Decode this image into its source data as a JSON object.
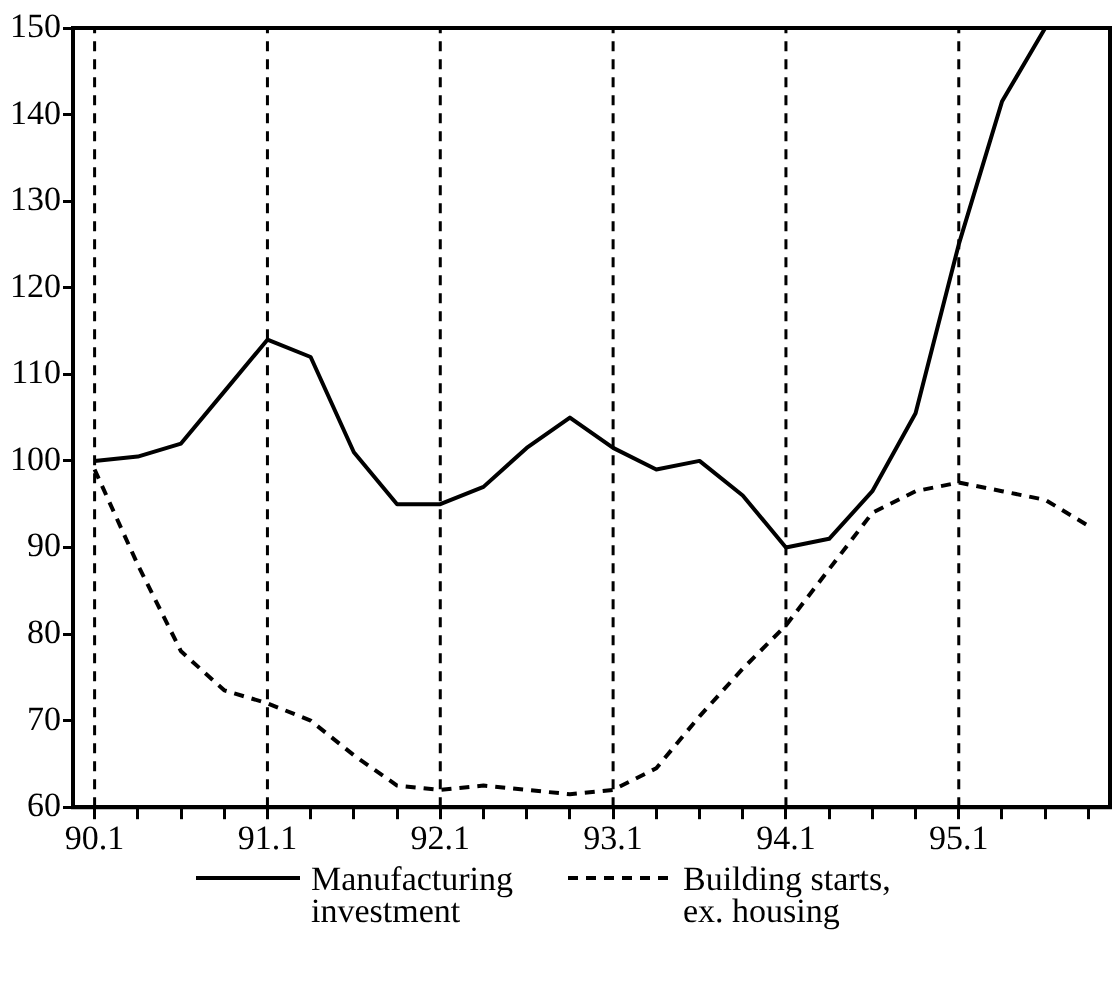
{
  "chart_data": {
    "type": "line",
    "categories": [
      "90.1",
      null,
      null,
      null,
      "91.1",
      null,
      null,
      null,
      "92.1",
      null,
      null,
      null,
      "93.1",
      null,
      null,
      null,
      "94.1",
      null,
      null,
      null,
      "95.1",
      null,
      null,
      null
    ],
    "series": [
      {
        "name": "Manufacturing investment",
        "color": "#000000",
        "line_style": "solid",
        "values": [
          100,
          100.5,
          102,
          108,
          114,
          112,
          101,
          95,
          95,
          97,
          101.5,
          105,
          101.5,
          99,
          100,
          96,
          90,
          91,
          96.5,
          105.5,
          125,
          141.5,
          150,
          null
        ]
      },
      {
        "name": "Building starts, ex. housing",
        "color": "#000000",
        "line_style": "dashed",
        "values": [
          99,
          88,
          78,
          73.5,
          72,
          70,
          66,
          62.5,
          62,
          62.5,
          62,
          61.5,
          62,
          64.5,
          70.5,
          76,
          81,
          87.5,
          94,
          96.5,
          97.5,
          96.5,
          95.5,
          92.5
        ]
      }
    ],
    "ylim": [
      60,
      150
    ],
    "yticks": [
      60,
      70,
      80,
      90,
      100,
      110,
      120,
      130,
      140,
      150
    ],
    "ref_lines": [
      {
        "axis": "x",
        "value": "90.1",
        "line_style": "dashed",
        "color": "#000000"
      },
      {
        "axis": "x",
        "value": "91.1",
        "line_style": "dashed",
        "color": "#000000"
      },
      {
        "axis": "x",
        "value": "92.1",
        "line_style": "dashed",
        "color": "#000000"
      },
      {
        "axis": "x",
        "value": "93.1",
        "line_style": "dashed",
        "color": "#000000"
      },
      {
        "axis": "x",
        "value": "94.1",
        "line_style": "dashed",
        "color": "#000000"
      },
      {
        "axis": "x",
        "value": "95.1",
        "line_style": "dashed",
        "color": "#000000"
      }
    ],
    "grid": false,
    "legend": "bottom",
    "marker": "none"
  }
}
